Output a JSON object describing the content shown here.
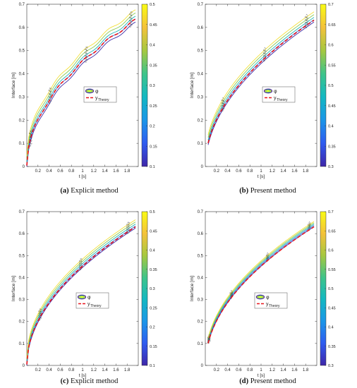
{
  "chart_data": [
    {
      "id": "a",
      "type": "line",
      "caption_letter": "(a)",
      "caption_text": " Explicit method",
      "xlabel": "t [s]",
      "ylabel": "Interface [m]",
      "xlim": [
        0,
        2.0
      ],
      "ylim": [
        0,
        0.7
      ],
      "xticks": [
        0.2,
        0.4,
        0.6,
        0.8,
        1,
        1.2,
        1.4,
        1.6,
        1.8
      ],
      "yticks": [
        0,
        0.1,
        0.2,
        0.3,
        0.4,
        0.5,
        0.6,
        0.7
      ],
      "colorbar": {
        "min": 0.1,
        "max": 0.5,
        "ticks": [
          0.1,
          0.15,
          0.2,
          0.25,
          0.3,
          0.35,
          0.4,
          0.45,
          0.5
        ]
      },
      "legend": {
        "phi_label": "φ",
        "theory_label": "y",
        "theory_sub": "Theory"
      },
      "theory": {
        "coeff": 0.452,
        "power": 0.5,
        "x_start": 0.0,
        "x_end": 1.95
      },
      "contours": [
        {
          "level": 0.1,
          "offset": -0.025,
          "color": "#3b2aa8"
        },
        {
          "level": 0.2,
          "offset": -0.012,
          "color": "#2c72e0"
        },
        {
          "level": 0.3,
          "offset": 0.0,
          "color": "#1fb5b5"
        },
        {
          "level": 0.4,
          "offset": 0.014,
          "color": "#8ccc52"
        },
        {
          "level": 0.5,
          "offset": 0.028,
          "color": "#f2e03a"
        }
      ],
      "label_x": [
        0.05,
        0.4,
        1.05,
        1.85
      ],
      "contour_text": [
        "0.1",
        "0.2",
        "0.3",
        "0.4",
        "0.5"
      ]
    },
    {
      "id": "b",
      "type": "line",
      "caption_letter": "(b)",
      "caption_text": " Present method",
      "xlabel": "t [s]",
      "ylabel": "Interface [m]",
      "xlim": [
        0,
        2.0
      ],
      "ylim": [
        0,
        0.7
      ],
      "xticks": [
        0.2,
        0.4,
        0.6,
        0.8,
        1,
        1.2,
        1.4,
        1.6,
        1.8
      ],
      "yticks": [
        0,
        0.1,
        0.2,
        0.3,
        0.4,
        0.5,
        0.6,
        0.7
      ],
      "colorbar": {
        "min": 0.3,
        "max": 0.7,
        "ticks": [
          0.3,
          0.35,
          0.4,
          0.45,
          0.5,
          0.55,
          0.6,
          0.65,
          0.7
        ]
      },
      "legend": {
        "phi_label": "φ",
        "theory_label": "y",
        "theory_sub": "Theory"
      },
      "theory": {
        "coeff": 0.452,
        "power": 0.5,
        "x_start": 0.05,
        "x_end": 1.95
      },
      "contours": [
        {
          "level": 0.3,
          "offset": -0.02,
          "color": "#3b2aa8"
        },
        {
          "level": 0.4,
          "offset": -0.01,
          "color": "#2c72e0"
        },
        {
          "level": 0.5,
          "offset": 0.0,
          "color": "#1fb5b5"
        },
        {
          "level": 0.6,
          "offset": 0.012,
          "color": "#8ccc52"
        },
        {
          "level": 0.7,
          "offset": 0.024,
          "color": "#f2e03a"
        }
      ],
      "label_x": [
        0.3,
        1.05,
        1.8
      ],
      "contour_text": [
        "0.3",
        "0.4",
        "0.5",
        "0.6",
        "0.7"
      ]
    },
    {
      "id": "c",
      "type": "line",
      "caption_letter": "(c)",
      "caption_text": " Explicit method",
      "xlabel": "t [s]",
      "ylabel": "Interface [m]",
      "xlim": [
        0,
        2.0
      ],
      "ylim": [
        0,
        0.7
      ],
      "xticks": [
        0.2,
        0.4,
        0.6,
        0.8,
        1,
        1.2,
        1.4,
        1.6,
        1.8
      ],
      "yticks": [
        0,
        0.1,
        0.2,
        0.3,
        0.4,
        0.5,
        0.6,
        0.7
      ],
      "colorbar": {
        "min": 0.1,
        "max": 0.5,
        "ticks": [
          0.1,
          0.15,
          0.2,
          0.25,
          0.3,
          0.35,
          0.4,
          0.45,
          0.5
        ]
      },
      "legend": {
        "phi_label": "φ",
        "theory_label": "y",
        "theory_sub": "Theory"
      },
      "theory": {
        "coeff": 0.452,
        "power": 0.5,
        "x_start": 0.0,
        "x_end": 1.95
      },
      "contours": [
        {
          "level": 0.1,
          "offset": -0.018,
          "color": "#3b2aa8"
        },
        {
          "level": 0.2,
          "offset": -0.009,
          "color": "#2c72e0"
        },
        {
          "level": 0.3,
          "offset": 0.0,
          "color": "#1fb5b5"
        },
        {
          "level": 0.4,
          "offset": 0.01,
          "color": "#8ccc52"
        },
        {
          "level": 0.5,
          "offset": 0.02,
          "color": "#f2e03a"
        }
      ],
      "label_x": [
        0.22,
        0.95,
        1.8
      ],
      "contour_text": [
        "0.1",
        "0.2",
        "0.3",
        "0.4",
        "0.5"
      ]
    },
    {
      "id": "d",
      "type": "line",
      "caption_letter": "(d)",
      "caption_text": " Present method",
      "xlabel": "t [s]",
      "ylabel": "Interface [m]",
      "xlim": [
        0,
        2.0
      ],
      "ylim": [
        0,
        0.7
      ],
      "xticks": [
        0.2,
        0.4,
        0.6,
        0.8,
        1,
        1.2,
        1.4,
        1.6,
        1.8
      ],
      "yticks": [
        0,
        0.1,
        0.2,
        0.3,
        0.4,
        0.5,
        0.6,
        0.7
      ],
      "colorbar": {
        "min": 0.3,
        "max": 0.7,
        "ticks": [
          0.3,
          0.35,
          0.4,
          0.45,
          0.5,
          0.55,
          0.6,
          0.65,
          0.7
        ]
      },
      "legend": {
        "phi_label": "φ",
        "theory_label": "y",
        "theory_sub": "Theory"
      },
      "theory": {
        "coeff": 0.452,
        "power": 0.5,
        "x_start": 0.05,
        "x_end": 1.95
      },
      "contours": [
        {
          "level": 0.3,
          "offset": -0.012,
          "color": "#3b2aa8"
        },
        {
          "level": 0.4,
          "offset": -0.006,
          "color": "#2c72e0"
        },
        {
          "level": 0.5,
          "offset": 0.0,
          "color": "#1fb5b5"
        },
        {
          "level": 0.6,
          "offset": 0.006,
          "color": "#8ccc52"
        },
        {
          "level": 0.7,
          "offset": 0.012,
          "color": "#f2e03a"
        }
      ],
      "label_x": [
        0.05,
        0.45,
        1.1,
        1.85
      ],
      "contour_text": [
        "0.3",
        "0.4",
        "0.5",
        "0.6",
        "0.7"
      ]
    }
  ],
  "colormap": [
    "#3e26a8",
    "#2f5bf0",
    "#1b96e8",
    "#13b8c2",
    "#3ec48a",
    "#a5c840",
    "#f4c23a",
    "#f9fb14"
  ]
}
